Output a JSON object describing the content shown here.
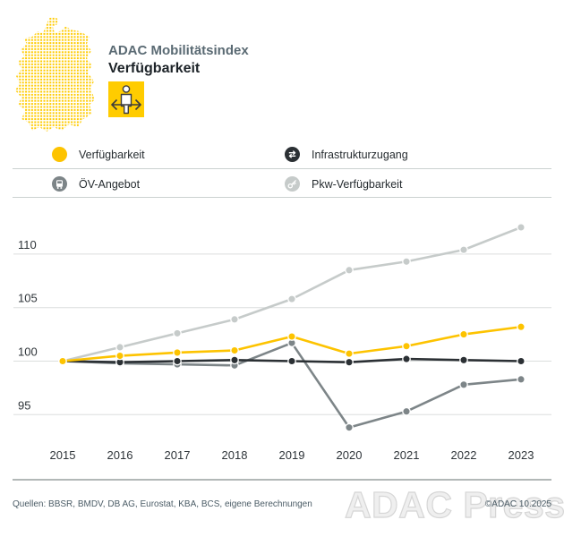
{
  "header": {
    "title_line1": "ADAC Mobilitätsindex",
    "title_line2": "Verfügbarkeit"
  },
  "legend": [
    {
      "label": "Verfügbarkeit",
      "color": "#fdc300",
      "icon": "yellow-dot"
    },
    {
      "label": "Infrastrukturzugang",
      "color": "#2b3034",
      "icon": "transfer-arrows"
    },
    {
      "label": "ÖV-Angebot",
      "color": "#7d8588",
      "icon": "bus"
    },
    {
      "label": "Pkw-Verfügbarkeit",
      "color": "#c6cbca",
      "icon": "car-key"
    }
  ],
  "chart_data": {
    "type": "line",
    "title": "ADAC Mobilitätsindex – Verfügbarkeit",
    "x": [
      2015,
      2016,
      2017,
      2018,
      2019,
      2020,
      2021,
      2022,
      2023
    ],
    "yticks": [
      95,
      100,
      105,
      110
    ],
    "ylim": [
      92.5,
      113.5
    ],
    "grid": true,
    "index_base": 100,
    "legend_position": "top",
    "series": [
      {
        "name": "Pkw-Verfügbarkeit",
        "color": "#c6cbca",
        "values": [
          100,
          101.3,
          102.6,
          103.9,
          105.8,
          108.5,
          109.3,
          110.4,
          112.5
        ]
      },
      {
        "name": "ÖV-Angebot",
        "color": "#7d8588",
        "values": [
          100,
          99.8,
          99.7,
          99.6,
          101.7,
          93.8,
          95.3,
          97.8,
          98.3
        ]
      },
      {
        "name": "Infrastrukturzugang",
        "color": "#2b3034",
        "values": [
          100,
          99.9,
          100.0,
          100.1,
          100.0,
          99.9,
          100.2,
          100.1,
          100.0
        ]
      },
      {
        "name": "Verfügbarkeit",
        "color": "#fdc300",
        "values": [
          100,
          100.5,
          100.8,
          101.0,
          102.3,
          100.7,
          101.4,
          102.5,
          103.2
        ]
      }
    ]
  },
  "footer": {
    "sources": "Quellen: BBSR, BMDV, DB AG, Eurostat, KBA, BCS, eigene Berechnungen",
    "copyright": "©ADAC 10.2025",
    "watermark": "ADAC Presse"
  }
}
